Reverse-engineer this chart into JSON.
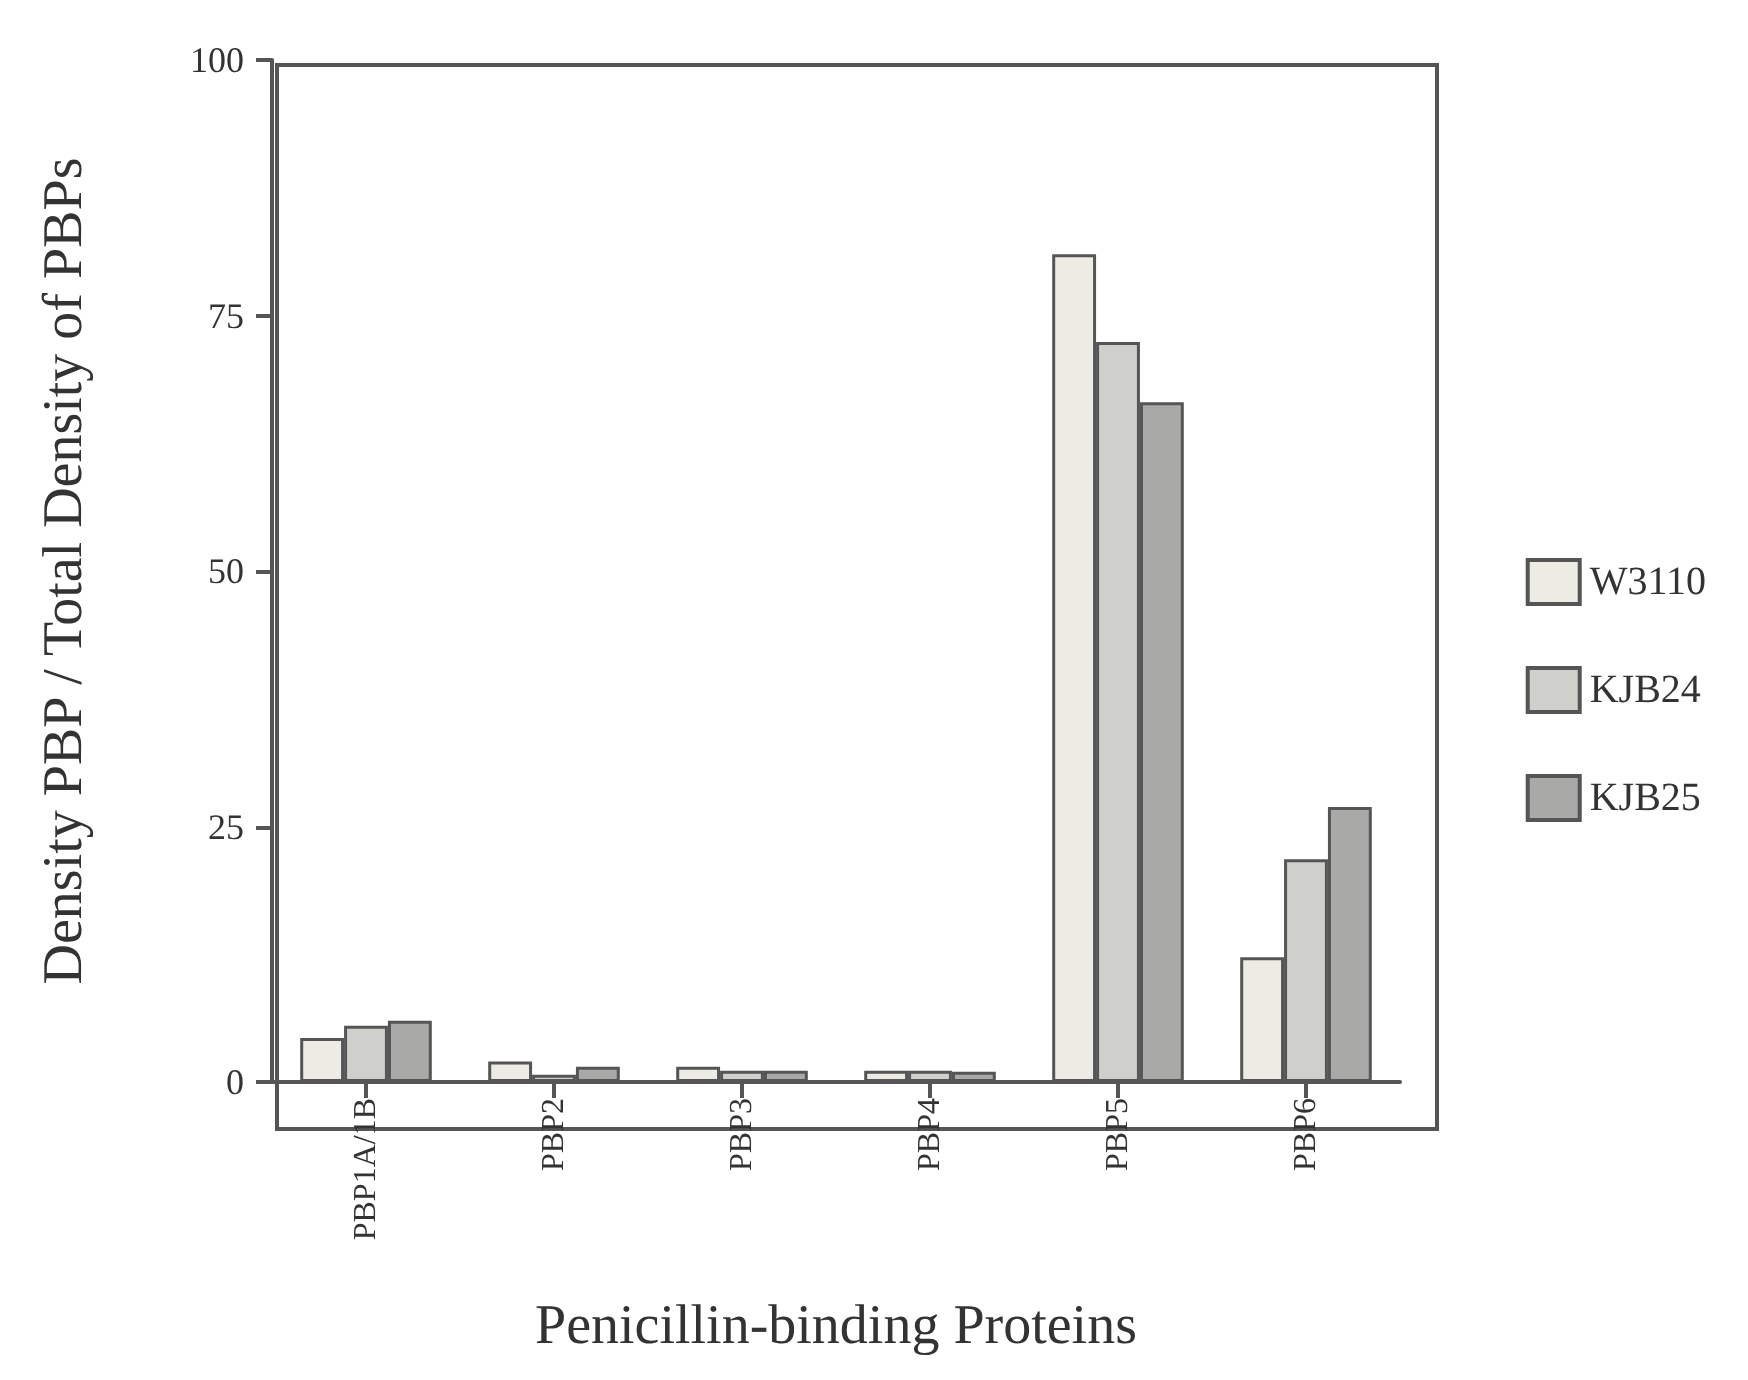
{
  "chart_data": {
    "type": "bar",
    "xlabel": "Penicillin-binding Proteins",
    "ylabel": "Density PBP / Total Density of PBPs",
    "categories": [
      "PBP1A/1B",
      "PBP2",
      "PBP3",
      "PBP4",
      "PBP5",
      "PBP6"
    ],
    "series": [
      {
        "name": "W3110",
        "color": "#ecebe4",
        "values": [
          4.3,
          2.0,
          1.5,
          1.1,
          81,
          12.2
        ]
      },
      {
        "name": "KJB24",
        "color": "#cfcfcc",
        "values": [
          5.5,
          0.7,
          1.1,
          1.1,
          72.4,
          21.8
        ]
      },
      {
        "name": "KJB25",
        "color": "#a9a9a8",
        "values": [
          6.0,
          1.5,
          1.1,
          1.0,
          66.5,
          26.9
        ]
      }
    ],
    "ylim": [
      0,
      100
    ],
    "yticks": [
      0,
      25,
      50,
      75,
      100
    ],
    "grid": false,
    "legend": "right"
  }
}
